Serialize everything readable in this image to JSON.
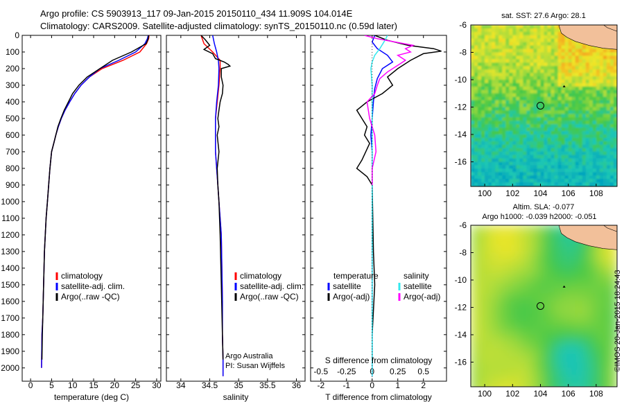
{
  "header": {
    "line1": "Argo profile: CS 5903913_117 09-Jan-2015 20150110_434 11.909S 104.014E",
    "line2": "Climatology: CARS2009. Satellite-adjusted climatology: synTS_20150110.nc (0.59d later)"
  },
  "side_stamp": "©IMOS 20-Jan-2015 18:24:43",
  "colors": {
    "climatology": "#ff0000",
    "satellite": "#0000ff",
    "argo": "#000000",
    "sat_diff_T": "#0000ff",
    "sat_diff_S": "#33e8ee",
    "argo_diff_S": "#ff00ff",
    "land": "#f2c09a"
  },
  "chart_data": [
    {
      "type": "line",
      "xlabel": "temperature (deg C)",
      "xlim": [
        -2,
        31
      ],
      "xticks": [
        0,
        5,
        10,
        15,
        20,
        25,
        30
      ],
      "ylim": [
        2080,
        0
      ],
      "yticks": [
        0,
        100,
        200,
        300,
        400,
        500,
        600,
        700,
        800,
        900,
        1000,
        1100,
        1200,
        1300,
        1400,
        1500,
        1600,
        1700,
        1800,
        1900,
        2000
      ],
      "legend": [
        "climatology",
        "satellite-adj. clim.",
        "Argo(..raw -QC)"
      ],
      "series": [
        {
          "name": "climatology",
          "color": "#ff0000",
          "x": [
            28.2,
            28.1,
            27.6,
            26,
            22,
            17,
            14,
            12,
            10.5,
            9.3,
            8.2,
            7.3,
            6.6,
            6.0,
            5.5,
            5.0,
            4.6,
            4.3,
            4.0,
            3.7,
            3.5,
            3.3,
            3.2,
            3.1,
            3.0,
            2.9,
            2.7,
            2.6
          ],
          "y": [
            0,
            20,
            50,
            100,
            150,
            200,
            250,
            300,
            350,
            400,
            450,
            500,
            550,
            600,
            650,
            700,
            800,
            900,
            1000,
            1100,
            1200,
            1300,
            1400,
            1500,
            1600,
            1700,
            1800,
            2000
          ]
        },
        {
          "name": "satellite-adj. clim.",
          "color": "#0000ff",
          "x": [
            28.0,
            27.8,
            27.2,
            25,
            21,
            16.5,
            14,
            12,
            10.5,
            9.3,
            8.2,
            7.3,
            6.6,
            6.0,
            5.5,
            5.0,
            4.6,
            4.3,
            4.0,
            3.7,
            3.5,
            3.3,
            3.2,
            3.1,
            3.0,
            2.9,
            2.7,
            2.6
          ],
          "y": [
            0,
            20,
            50,
            100,
            150,
            200,
            250,
            300,
            350,
            400,
            450,
            500,
            550,
            600,
            650,
            700,
            800,
            900,
            1000,
            1100,
            1200,
            1300,
            1400,
            1500,
            1600,
            1700,
            1800,
            2000
          ]
        },
        {
          "name": "Argo(..raw -QC)",
          "color": "#000000",
          "x": [
            28.1,
            28.0,
            27.5,
            24,
            19.5,
            16.5,
            13.5,
            11.5,
            10.0,
            9.0,
            8.0,
            7.2,
            6.5,
            6.0,
            5.5,
            5.0,
            4.6,
            4.3,
            4.0,
            3.7,
            3.5,
            3.3,
            3.2,
            3.1,
            3.0,
            2.9,
            2.8,
            2.7
          ],
          "y": [
            0,
            20,
            50,
            100,
            150,
            200,
            250,
            300,
            350,
            400,
            450,
            500,
            550,
            600,
            650,
            700,
            800,
            900,
            1000,
            1100,
            1200,
            1300,
            1400,
            1500,
            1600,
            1700,
            1800,
            1950
          ]
        }
      ],
      "annotations": []
    },
    {
      "type": "line",
      "xlabel": "salinity",
      "xlim": [
        33.75,
        36.15
      ],
      "xticks": [
        34,
        34.5,
        35,
        35.5,
        36
      ],
      "ylim": [
        2080,
        0
      ],
      "legend": [
        "climatology",
        "satellite-adj. clim.",
        "Argo(..raw -QC)"
      ],
      "series": [
        {
          "name": "climatology",
          "color": "#ff0000",
          "x": [
            34.35,
            34.4,
            34.55,
            34.68,
            34.68,
            34.66,
            34.63,
            34.6,
            34.6,
            34.6,
            34.62,
            34.64,
            34.66,
            34.68,
            34.7,
            34.71,
            34.72,
            34.72,
            34.73,
            34.73
          ],
          "y": [
            0,
            50,
            100,
            150,
            200,
            300,
            400,
            500,
            600,
            700,
            800,
            900,
            1000,
            1100,
            1200,
            1400,
            1600,
            1800,
            1950,
            2050
          ]
        },
        {
          "name": "satellite-adj. clim.",
          "color": "#0000ff",
          "x": [
            34.55,
            34.58,
            34.62,
            34.65,
            34.66,
            34.65,
            34.62,
            34.6,
            34.6,
            34.6,
            34.62,
            34.64,
            34.66,
            34.68,
            34.7,
            34.71,
            34.72,
            34.72,
            34.73,
            34.73
          ],
          "y": [
            0,
            50,
            100,
            150,
            200,
            300,
            400,
            500,
            600,
            700,
            800,
            900,
            1000,
            1100,
            1200,
            1400,
            1600,
            1800,
            1950,
            2050
          ]
        },
        {
          "name": "Argo(..raw -QC)",
          "color": "#000000",
          "x": [
            34.35,
            34.42,
            34.5,
            34.4,
            34.55,
            34.6,
            34.75,
            34.82,
            34.85,
            34.7,
            34.7,
            34.73,
            34.72,
            34.68,
            34.66,
            34.64,
            34.66,
            34.63,
            34.66,
            34.63,
            34.64,
            34.66,
            34.68,
            34.7,
            34.72,
            34.73
          ],
          "y": [
            0,
            25,
            60,
            85,
            110,
            140,
            160,
            175,
            185,
            200,
            250,
            300,
            350,
            400,
            450,
            500,
            550,
            600,
            700,
            800,
            900,
            1000,
            1200,
            1500,
            1800,
            1950
          ]
        }
      ],
      "annotations": [
        "Argo Australia",
        "PI: Susan Wijffels"
      ]
    },
    {
      "type": "line",
      "xlabel": "T difference from climatology",
      "x2label": "S difference from climatology",
      "xlim": [
        -2.4,
        2.9
      ],
      "xticks": [
        -2,
        -1,
        0,
        1,
        2
      ],
      "x2ticks": [
        -0.5,
        -0.25,
        0,
        0.25,
        0.5
      ],
      "x2ticklabels": [
        "-0.5",
        "-0.25",
        "0",
        "0.25",
        "0.5"
      ],
      "ylim": [
        2080,
        0
      ],
      "legend_groups": [
        "temperature",
        "salinity"
      ],
      "legend": [
        "satellite",
        "Argo(-adj)",
        "satellite",
        "Argo(-adj)"
      ],
      "series": [
        {
          "name": "satellite",
          "group": "temperature",
          "color": "#0000ff",
          "x": [
            0.1,
            0.0,
            0.2,
            0.6,
            0.8,
            0.4,
            0.2,
            0.1,
            0.05,
            0.0,
            -0.05,
            0.0,
            0.0,
            0.0,
            0.0,
            0.0,
            0.0
          ],
          "y": [
            0,
            40,
            80,
            120,
            160,
            200,
            260,
            320,
            400,
            500,
            600,
            700,
            900,
            1100,
            1400,
            1700,
            2050
          ]
        },
        {
          "name": "Argo(-adj)",
          "group": "temperature",
          "color": "#000000",
          "x": [
            0.1,
            0.6,
            1.4,
            2.4,
            2.7,
            2.0,
            1.5,
            1.0,
            0.6,
            0.8,
            0.4,
            -0.2,
            -0.6,
            -0.4,
            -0.2,
            -0.3,
            -0.1,
            -0.4,
            -0.6,
            -0.2,
            0.0,
            0.05,
            0.1,
            0.0,
            0.0
          ],
          "y": [
            0,
            30,
            60,
            80,
            95,
            110,
            150,
            200,
            250,
            300,
            350,
            400,
            450,
            500,
            550,
            600,
            650,
            750,
            800,
            850,
            900,
            1300,
            1500,
            1800,
            1950
          ]
        },
        {
          "name": "satellite",
          "group": "salinity",
          "color": "#33e8ee",
          "x": [
            0.6,
            0.5,
            0.3,
            0.1,
            0.0,
            -0.05,
            0.0,
            0.0,
            0.0,
            0.0,
            0.0,
            0.0,
            0.0,
            0.0,
            0.0,
            0.0,
            0.0,
            0.0,
            0.0
          ],
          "y": [
            0,
            30,
            80,
            120,
            160,
            200,
            300,
            400,
            500,
            600,
            700,
            800,
            900,
            1100,
            1300,
            1500,
            1700,
            1900,
            2050
          ]
        },
        {
          "name": "Argo(-adj)",
          "group": "salinity",
          "color": "#ff00ff",
          "x": [
            -0.3,
            0.2,
            0.9,
            1.6,
            1.3,
            1.5,
            1.0,
            1.3,
            1.0,
            0.6,
            0.3,
            0.2,
            0.1,
            -0.2,
            -0.1,
            0.1,
            0.15,
            0.0,
            0.0,
            0.0
          ],
          "y": [
            0,
            20,
            40,
            60,
            80,
            100,
            120,
            150,
            180,
            220,
            260,
            300,
            350,
            400,
            500,
            600,
            700,
            800,
            850,
            900
          ]
        }
      ]
    },
    {
      "type": "heatmap",
      "title": "sat. SST: 27.6  Argo: 28.1",
      "xlim": [
        99,
        109.5
      ],
      "xticks": [
        100,
        102,
        104,
        106,
        108
      ],
      "ylim": [
        -17.8,
        -6
      ],
      "yticks": [
        -6,
        -8,
        -10,
        -12,
        -14,
        -16
      ],
      "marker": {
        "lon": 104.0,
        "lat": -11.9
      },
      "small_island": {
        "lon": 105.7,
        "lat": -10.5
      }
    },
    {
      "type": "heatmap",
      "title": "Altim. SLA: -0.077",
      "subtitle": "Argo h1000: -0.039  h2000: -0.051",
      "xlim": [
        99,
        109.5
      ],
      "xticks": [
        100,
        102,
        104,
        106,
        108
      ],
      "ylim": [
        -17.8,
        -6
      ],
      "yticks": [
        -6,
        -8,
        -10,
        -12,
        -14,
        -16
      ],
      "marker": {
        "lon": 104.0,
        "lat": -11.9
      },
      "small_island": {
        "lon": 105.7,
        "lat": -10.5
      }
    }
  ]
}
